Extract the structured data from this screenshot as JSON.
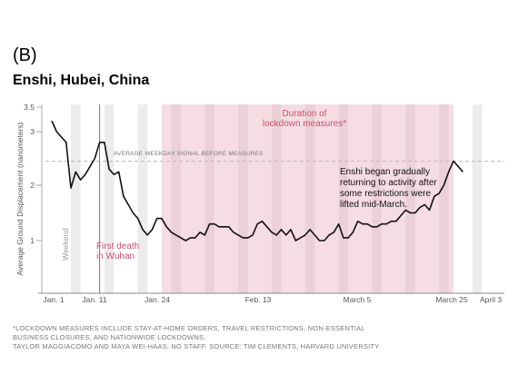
{
  "panel_label": "(B)",
  "title": "Enshi, Hubei, China",
  "footnotes": [
    "*LOCKDOWN MEASURES INCLUDE STAY-AT-HOME ORDERS, TRAVEL RESTRICTIONS, NON-ESSENTIAL",
    "BUSINESS CLOSURES, AND NATIONWIDE LOCKDOWNS.",
    "TAYLOR MAGGIACOMO AND MAYA WEI-HAAS, NG STAFF. SOURCE: TIM CLEMENTS, HARVARD UNIVERSITY"
  ],
  "colors": {
    "line": "#111111",
    "lockdown": "#f5dde3",
    "weekend": "#ececec",
    "weekend_in_lockdown": "#ecd0d8",
    "first_death": "#c7506e",
    "avg_line": "#bbbbbb"
  },
  "chart_data": {
    "type": "line",
    "title": "Enshi, Hubei, China",
    "ylabel": "Average Ground Displacement (nanometers)",
    "ylim": [
      0.5,
      3.5
    ],
    "y_ticks": [
      "1",
      "2",
      "3",
      "3.5"
    ],
    "x_ticks": [
      "Jan. 1",
      "Jan. 11",
      "Jan. 24",
      "Feb. 13",
      "March 5",
      "March 25",
      "April 3"
    ],
    "x_tick_days": [
      0,
      10,
      23,
      43,
      63,
      83,
      92
    ],
    "grid": false,
    "lockdown_period": {
      "start_day": 23,
      "end_day": 84,
      "label_lines": [
        "Duration of",
        "lockdown measures*"
      ]
    },
    "weekends_start_days": [
      4,
      11,
      18,
      25,
      32,
      39,
      46,
      53,
      60,
      67,
      74,
      81,
      88
    ],
    "weekend_label": "Weekend",
    "first_death": {
      "day": 10,
      "label_lines": [
        "First death",
        "in Wuhan"
      ]
    },
    "average_weekday_signal": {
      "value": 2.45,
      "label": "AVERAGE WEEKDAY SIGNAL BEFORE MEASURES"
    },
    "annotation_lines": [
      "Enshi began gradually",
      "returning to activity after",
      "some restrictions were",
      "lifted mid-March."
    ],
    "series": [
      {
        "values": [
          [
            0,
            3.2
          ],
          [
            1,
            3.0
          ],
          [
            2,
            2.9
          ],
          [
            3,
            2.8
          ],
          [
            4,
            1.95
          ],
          [
            5,
            2.25
          ],
          [
            6,
            2.1
          ],
          [
            7,
            2.2
          ],
          [
            8,
            2.35
          ],
          [
            9,
            2.5
          ],
          [
            10,
            2.8
          ],
          [
            11,
            2.8
          ],
          [
            12,
            2.3
          ],
          [
            13,
            2.2
          ],
          [
            14,
            2.25
          ],
          [
            15,
            1.8
          ],
          [
            16,
            1.65
          ],
          [
            17,
            1.5
          ],
          [
            18,
            1.4
          ],
          [
            19,
            1.2
          ],
          [
            20,
            1.1
          ],
          [
            21,
            1.2
          ],
          [
            22,
            1.4
          ],
          [
            23,
            1.4
          ],
          [
            24,
            1.25
          ],
          [
            25,
            1.15
          ],
          [
            26,
            1.1
          ],
          [
            27,
            1.05
          ],
          [
            28,
            1.0
          ],
          [
            29,
            1.05
          ],
          [
            30,
            1.05
          ],
          [
            31,
            1.15
          ],
          [
            32,
            1.1
          ],
          [
            33,
            1.3
          ],
          [
            34,
            1.3
          ],
          [
            35,
            1.25
          ],
          [
            36,
            1.25
          ],
          [
            37,
            1.25
          ],
          [
            38,
            1.15
          ],
          [
            39,
            1.1
          ],
          [
            40,
            1.05
          ],
          [
            41,
            1.05
          ],
          [
            42,
            1.1
          ],
          [
            43,
            1.3
          ],
          [
            44,
            1.35
          ],
          [
            45,
            1.25
          ],
          [
            46,
            1.15
          ],
          [
            47,
            1.1
          ],
          [
            48,
            1.2
          ],
          [
            49,
            1.1
          ],
          [
            50,
            1.2
          ],
          [
            51,
            1.0
          ],
          [
            52,
            1.05
          ],
          [
            53,
            1.1
          ],
          [
            54,
            1.2
          ],
          [
            55,
            1.1
          ],
          [
            56,
            1.0
          ],
          [
            57,
            1.0
          ],
          [
            58,
            1.1
          ],
          [
            59,
            1.15
          ],
          [
            60,
            1.3
          ],
          [
            61,
            1.05
          ],
          [
            62,
            1.05
          ],
          [
            63,
            1.15
          ],
          [
            64,
            1.35
          ],
          [
            65,
            1.3
          ],
          [
            66,
            1.3
          ],
          [
            67,
            1.25
          ],
          [
            68,
            1.25
          ],
          [
            69,
            1.3
          ],
          [
            70,
            1.3
          ],
          [
            71,
            1.35
          ],
          [
            72,
            1.35
          ],
          [
            73,
            1.45
          ],
          [
            74,
            1.55
          ],
          [
            75,
            1.5
          ],
          [
            76,
            1.5
          ],
          [
            77,
            1.6
          ],
          [
            78,
            1.65
          ],
          [
            79,
            1.55
          ],
          [
            80,
            1.8
          ],
          [
            81,
            1.85
          ],
          [
            82,
            2.0
          ],
          [
            83,
            2.25
          ],
          [
            84,
            2.45
          ],
          [
            85,
            2.35
          ],
          [
            86,
            2.25
          ]
        ]
      }
    ]
  }
}
